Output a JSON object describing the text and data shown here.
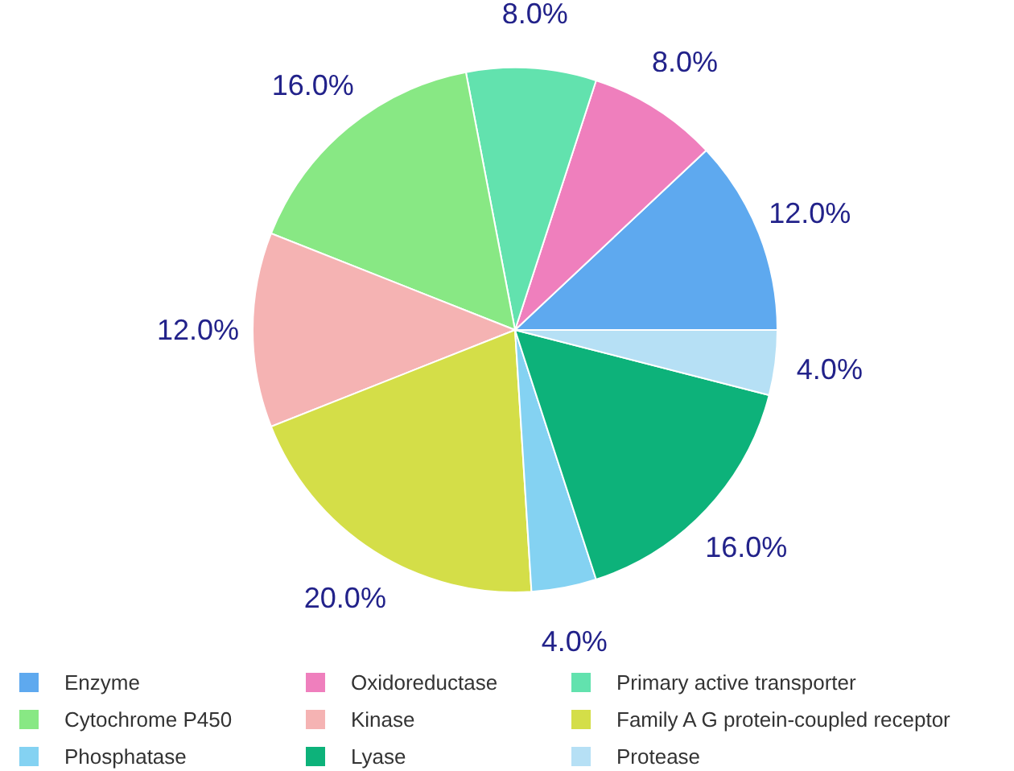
{
  "chart_data": {
    "type": "pie",
    "categories": [
      "Enzyme",
      "Oxidoreductase",
      "Primary active transporter",
      "Cytochrome P450",
      "Kinase",
      "Family A G protein-coupled receptor",
      "Phosphatase",
      "Lyase",
      "Protease"
    ],
    "values": [
      12,
      8,
      8,
      16,
      12,
      20,
      4,
      16,
      4
    ],
    "colors": [
      "#5ea9ef",
      "#ef7fbd",
      "#62e2ae",
      "#88e884",
      "#f5b3b3",
      "#d4de48",
      "#84d2f2",
      "#0db27a",
      "#b6e0f5"
    ],
    "value_labels": [
      "12.0%",
      "8.0%",
      "8.0%",
      "16.0%",
      "12.0%",
      "20.0%",
      "4.0%",
      "16.0%",
      "4.0%"
    ],
    "legend": "bottom"
  }
}
